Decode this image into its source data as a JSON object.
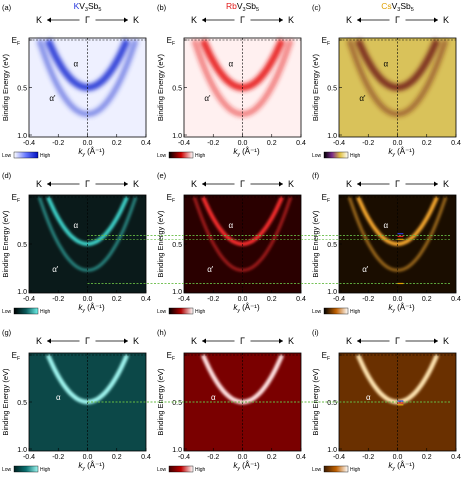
{
  "figure": {
    "panel_letters": [
      "(a)",
      "(b)",
      "(c)",
      "(d)",
      "(e)",
      "(f)",
      "(g)",
      "(h)",
      "(i)"
    ],
    "compound_titles": [
      {
        "element": "K",
        "element_color": "#2233dd",
        "rest": "V",
        "sub1": "3",
        "mid": "Sb",
        "sub2": "5"
      },
      {
        "element": "Rb",
        "element_color": "#e01818",
        "rest": "V",
        "sub1": "3",
        "mid": "Sb",
        "sub2": "5"
      },
      {
        "element": "Cs",
        "element_color": "#e0a000",
        "rest": "V",
        "sub1": "3",
        "mid": "Sb",
        "sub2": "5"
      }
    ],
    "direction": {
      "left": "K",
      "center": "Γ",
      "right": "K"
    },
    "y_axis_label": "Binding Energy (eV)",
    "y_ticks": [
      "E",
      "0.5",
      "1.0"
    ],
    "y_tick_top_sub": "F",
    "x_axis_label": {
      "main": "k",
      "sub": "y",
      "unit": " (Å⁻¹)"
    },
    "x_ticks": [
      "-0.4",
      "-0.2",
      "0.0",
      "0.2",
      "0.4"
    ],
    "band_labels": {
      "alpha": "α",
      "alpha_prime": "α'"
    },
    "colorbar": {
      "low": "Low",
      "high": "High"
    }
  },
  "colors": {
    "row1": [
      "#2b3bd6",
      "#e82020",
      "#7a2a1a"
    ],
    "row1_bg": [
      "#eef0ff",
      "#fff0f0",
      "#d9c25a"
    ],
    "row2_bg": [
      "#0a1a1a",
      "#2a0000",
      "#1a0d00"
    ],
    "row2_band": [
      "#3fd9d0",
      "#ff3030",
      "#ffae30"
    ],
    "row3_bg": [
      "#0c4848",
      "#7a0000",
      "#6a3000"
    ],
    "row3_band": [
      "#9ff5ef",
      "#ffe0e0",
      "#ffe4b0"
    ],
    "guide_green": "#66bb44",
    "marker_colors": [
      "#2b3bd6",
      "#e82020",
      "#e0a000"
    ]
  }
}
